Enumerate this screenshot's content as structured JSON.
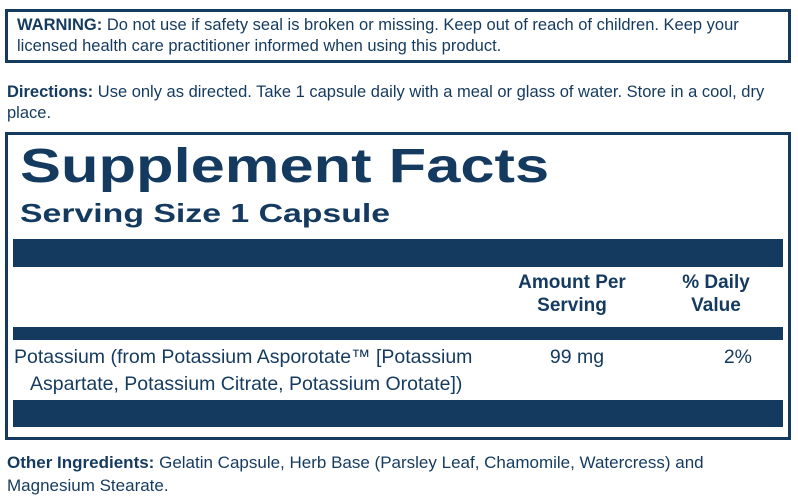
{
  "colors": {
    "navy": "#143A5F",
    "background": "#FFFFFF"
  },
  "warning": {
    "label": "WARNING:",
    "text": "Do not use if safety seal is broken or missing. Keep out of reach of children. Keep your licensed health care practitioner informed when using this product."
  },
  "directions": {
    "label": "Directions:",
    "text": "Use only as directed. Take 1 capsule daily with a meal or glass of water. Store in a cool, dry place."
  },
  "supplement_facts": {
    "title": "Supplement Facts",
    "serving_size": "Serving Size 1 Capsule",
    "columns": {
      "amount_per_serving": "Amount Per Serving",
      "percent_daily_value": "% Daily Value"
    },
    "rows": [
      {
        "name_lines": [
          "Potassium (from Potassium Asporotate™ [Potassium",
          "Aspartate, Potassium Citrate, Potassium Orotate])"
        ],
        "amount": "99 mg",
        "daily_value": "2%"
      }
    ]
  },
  "other_ingredients": {
    "label": "Other Ingredients:",
    "text": "Gelatin Capsule, Herb Base (Parsley Leaf, Chamomile, Watercress) and Magnesium Stearate."
  }
}
